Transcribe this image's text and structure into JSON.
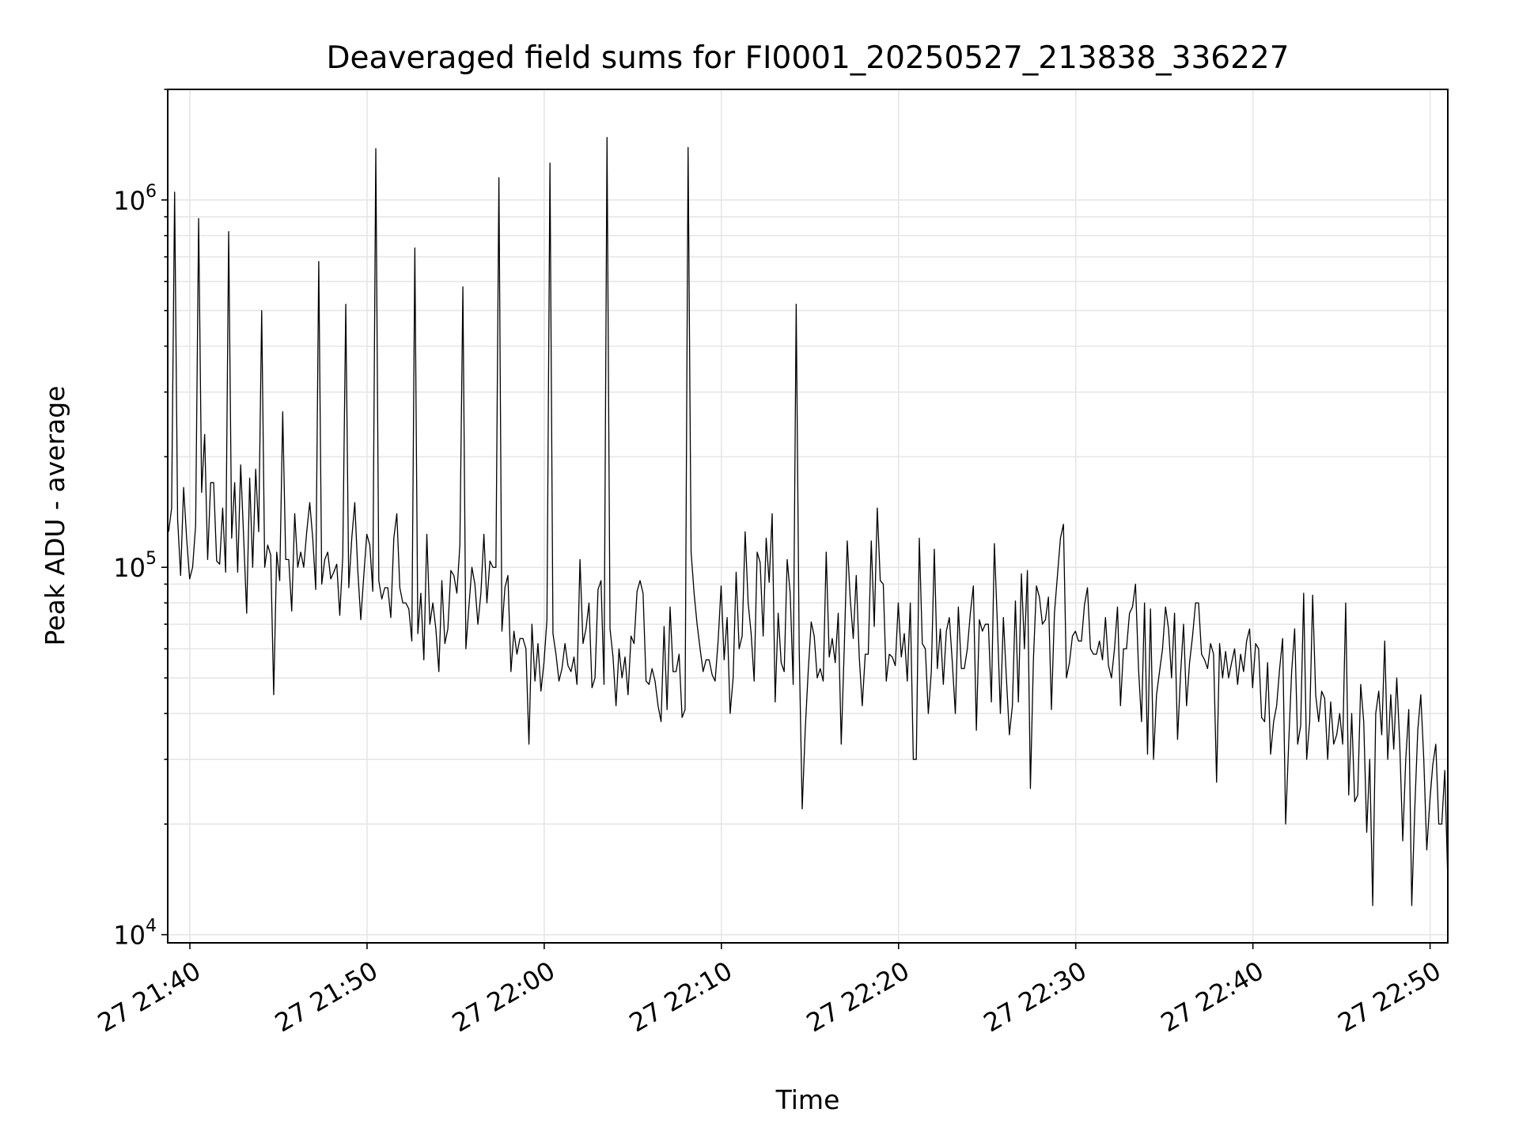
{
  "chart_data": {
    "type": "line",
    "title": "Deaveraged field sums for FI0001_20250527_213838_336227",
    "xlabel": "Time",
    "ylabel": "Peak ADU - average",
    "y_scale": "log",
    "ylim": [
      9500,
      2000000
    ],
    "xlim": [
      "27 21:38:45",
      "27 22:51:00"
    ],
    "grid": true,
    "line_color": "#000000",
    "x_ticks": [
      "27 21:40",
      "27 21:50",
      "27 22:00",
      "27 22:10",
      "27 22:20",
      "27 22:30",
      "27 22:40",
      "27 22:50"
    ],
    "y_ticks": [
      {
        "base": "10",
        "exp": "4"
      },
      {
        "base": "10",
        "exp": "5"
      },
      {
        "base": "10",
        "exp": "6"
      }
    ],
    "series": [
      {
        "x_start": "27 21:38:48",
        "x_end": "27 22:51:00",
        "values": [
          125000,
          145000,
          1050000,
          135000,
          95000,
          165000,
          120000,
          93000,
          100000,
          130000,
          890000,
          160000,
          230000,
          105000,
          170000,
          170000,
          104000,
          102000,
          145000,
          97000,
          820000,
          120000,
          170000,
          97000,
          190000,
          120000,
          75000,
          175000,
          100000,
          185000,
          125000,
          500000,
          100000,
          115000,
          108000,
          45000,
          110000,
          92000,
          265000,
          105000,
          105000,
          76000,
          140000,
          100000,
          110000,
          100000,
          125000,
          150000,
          120000,
          87000,
          680000,
          90000,
          105000,
          110000,
          93000,
          97000,
          102000,
          74000,
          107000,
          520000,
          88000,
          120000,
          150000,
          98000,
          72000,
          95000,
          123000,
          115000,
          86000,
          1380000,
          92000,
          82000,
          88000,
          88000,
          73000,
          120000,
          140000,
          88000,
          80000,
          80000,
          77000,
          63000,
          740000,
          66000,
          85000,
          56000,
          123000,
          70000,
          80000,
          68000,
          52000,
          92000,
          62000,
          68000,
          98000,
          95000,
          85000,
          115000,
          580000,
          60000,
          78000,
          100000,
          90000,
          70000,
          85000,
          123000,
          80000,
          104000,
          100000,
          100000,
          1150000,
          67000,
          88000,
          95000,
          52000,
          67000,
          58000,
          64000,
          64000,
          60000,
          33000,
          70000,
          49000,
          62000,
          46000,
          55000,
          72000,
          1260000,
          66000,
          58000,
          49000,
          53000,
          62000,
          54000,
          52000,
          57000,
          48000,
          105000,
          62000,
          68000,
          80000,
          47000,
          50000,
          87000,
          92000,
          48000,
          1480000,
          68000,
          57000,
          42000,
          60000,
          50000,
          57000,
          45000,
          65000,
          62000,
          86000,
          92000,
          85000,
          49000,
          48000,
          53000,
          49000,
          42000,
          38000,
          69000,
          41000,
          78000,
          52000,
          52000,
          58000,
          39000,
          41000,
          1390000,
          110000,
          85000,
          70000,
          60000,
          52000,
          56000,
          56000,
          51000,
          49000,
          63000,
          89000,
          56000,
          73000,
          40000,
          50000,
          97000,
          60000,
          65000,
          125000,
          80000,
          66000,
          49000,
          110000,
          103000,
          65000,
          120000,
          91000,
          140000,
          43000,
          75000,
          55000,
          52000,
          105000,
          85000,
          48000,
          520000,
          60000,
          22000,
          36000,
          52000,
          71000,
          65000,
          50000,
          53000,
          49000,
          110000,
          57000,
          64000,
          55000,
          75000,
          33000,
          60000,
          118000,
          82000,
          64000,
          95000,
          57000,
          42000,
          58000,
          58000,
          118000,
          69000,
          145000,
          92000,
          90000,
          49000,
          58000,
          57000,
          54000,
          80000,
          57000,
          66000,
          49000,
          80000,
          30000,
          30000,
          120000,
          62000,
          60000,
          40000,
          52000,
          112000,
          53000,
          68000,
          48000,
          67000,
          73000,
          55000,
          40000,
          78000,
          53000,
          53000,
          60000,
          75000,
          89000,
          36000,
          72000,
          67000,
          70000,
          70000,
          43000,
          116000,
          70000,
          40000,
          73000,
          50000,
          35000,
          42000,
          81000,
          43000,
          96000,
          60000,
          98000,
          25000,
          56000,
          89000,
          83000,
          70000,
          72000,
          83000,
          41000,
          75000,
          95000,
          120000,
          131000,
          50000,
          55000,
          65000,
          67000,
          63000,
          63000,
          79000,
          88000,
          60000,
          58000,
          58000,
          63000,
          56000,
          73000,
          54000,
          50000,
          60000,
          78000,
          42000,
          60000,
          60000,
          75000,
          78000,
          90000,
          53000,
          38000,
          80000,
          31000,
          77000,
          30000,
          45000,
          52000,
          60000,
          78000,
          68000,
          50000,
          75000,
          34000,
          51000,
          70000,
          42000,
          55000,
          65000,
          80000,
          80000,
          58000,
          56000,
          53000,
          62000,
          58000,
          26000,
          62000,
          50000,
          59000,
          50000,
          55000,
          60000,
          48000,
          58000,
          52000,
          63000,
          68000,
          47000,
          62000,
          60000,
          39000,
          38000,
          55000,
          31000,
          38000,
          42000,
          53000,
          64000,
          20000,
          33000,
          52000,
          68000,
          33000,
          37000,
          85000,
          30000,
          38000,
          84000,
          45000,
          38000,
          46000,
          44000,
          30000,
          43000,
          33000,
          35000,
          40000,
          33000,
          80000,
          24000,
          40000,
          23000,
          24000,
          48000,
          38000,
          19000,
          30000,
          12000,
          40000,
          46000,
          35000,
          63000,
          30000,
          45000,
          32000,
          50000,
          33000,
          18000,
          30000,
          41000,
          12000,
          22000,
          36000,
          45000,
          30000,
          17000,
          23000,
          29000,
          33000,
          20000,
          20000,
          28000,
          14000
        ]
      }
    ]
  }
}
